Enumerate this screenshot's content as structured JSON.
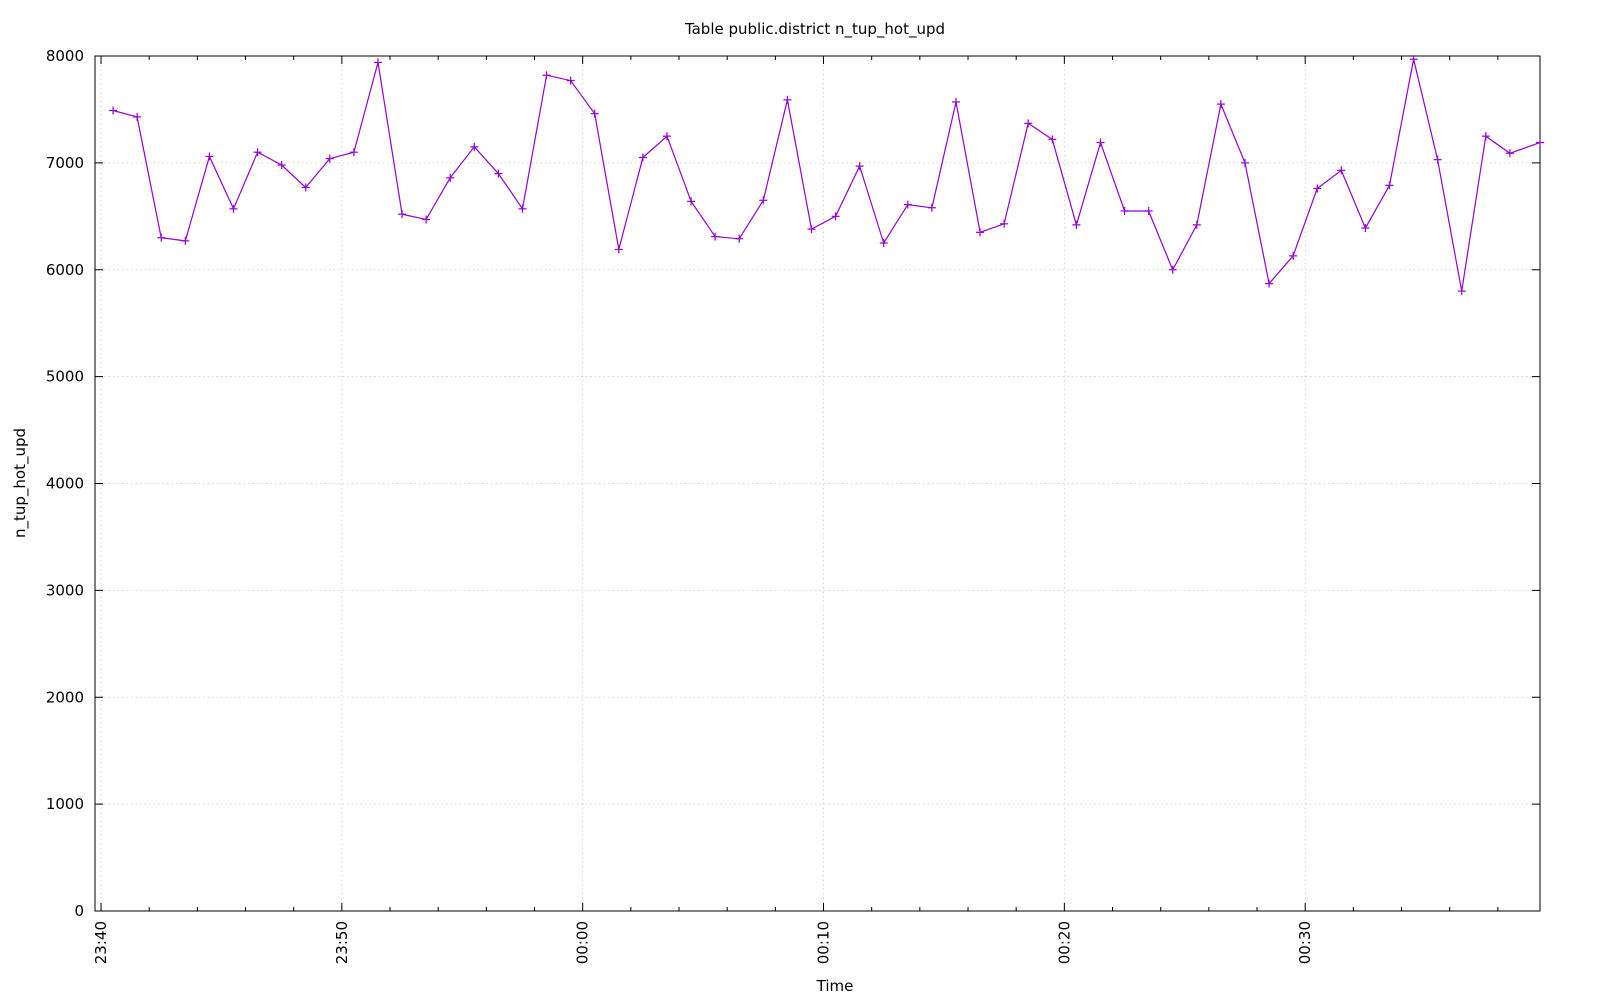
{
  "chart_data": {
    "type": "line",
    "title": "Table public.district n_tup_hot_upd",
    "xlabel": "Time",
    "ylabel": "n_tup_hot_upd",
    "ylim": [
      0,
      8000
    ],
    "xlim": [
      "23:39:45",
      "00:39:45"
    ],
    "yticks": [
      0,
      1000,
      2000,
      3000,
      4000,
      5000,
      6000,
      7000,
      8000
    ],
    "xticks": [
      "23:40",
      "23:50",
      "00:00",
      "00:10",
      "00:20",
      "00:30"
    ],
    "grid": true,
    "legend": "none",
    "series": [
      {
        "color": "#9400d3",
        "marker": "plus",
        "x": [
          "23:40:30",
          "23:41:30",
          "23:42:30",
          "23:43:30",
          "23:44:30",
          "23:45:30",
          "23:46:30",
          "23:47:30",
          "23:48:30",
          "23:49:30",
          "23:50:30",
          "23:51:30",
          "23:52:30",
          "23:53:30",
          "23:54:30",
          "23:55:30",
          "23:56:30",
          "23:57:30",
          "23:58:30",
          "23:59:30",
          "00:00:30",
          "00:01:30",
          "00:02:30",
          "00:03:30",
          "00:04:30",
          "00:05:30",
          "00:06:30",
          "00:07:30",
          "00:08:30",
          "00:09:30",
          "00:10:30",
          "00:11:30",
          "00:12:30",
          "00:13:30",
          "00:14:30",
          "00:15:30",
          "00:16:30",
          "00:17:30",
          "00:18:30",
          "00:19:30",
          "00:20:30",
          "00:21:30",
          "00:22:30",
          "00:23:30",
          "00:24:30",
          "00:25:30",
          "00:26:30",
          "00:27:30",
          "00:28:30",
          "00:29:30",
          "00:30:30",
          "00:31:30",
          "00:32:30",
          "00:33:30",
          "00:34:30",
          "00:35:30",
          "00:36:30",
          "00:37:30",
          "00:38:30",
          "00:39:45"
        ],
        "values": [
          7490,
          7430,
          6300,
          6270,
          7060,
          6570,
          7100,
          6980,
          6770,
          7040,
          7100,
          7940,
          6520,
          6470,
          6860,
          7150,
          6900,
          6570,
          7820,
          7770,
          7460,
          6190,
          7050,
          7250,
          6640,
          6310,
          6290,
          6650,
          7590,
          6380,
          6500,
          6970,
          6250,
          6610,
          6580,
          7570,
          6350,
          6430,
          7370,
          7220,
          6420,
          7190,
          6550,
          6550,
          6000,
          6420,
          7550,
          7000,
          5870,
          6130,
          6760,
          6930,
          6390,
          6790,
          7970,
          7030,
          5800,
          7250,
          7090,
          7190
        ]
      }
    ]
  }
}
